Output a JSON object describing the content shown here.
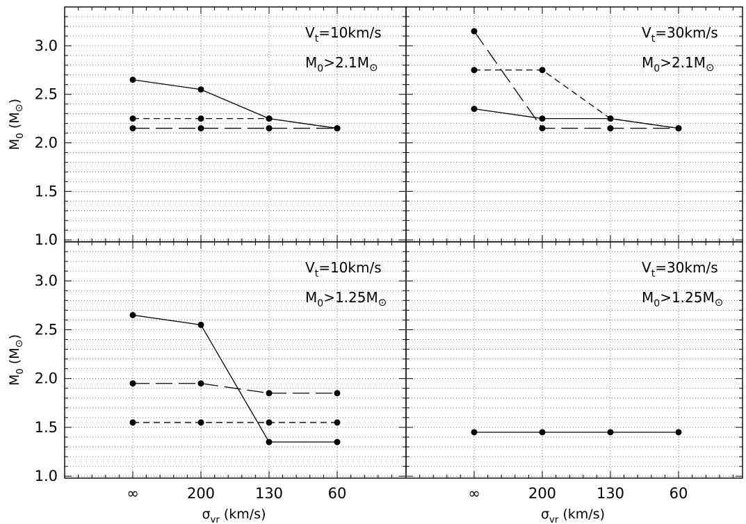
{
  "chart_data": {
    "type": "line",
    "x_tick_labels": [
      "∞",
      "200",
      "130",
      "60"
    ],
    "x_label": {
      "base": "σ",
      "sub": "vr",
      "rest": " (km/s)"
    },
    "y_label": {
      "base": "M",
      "sub": "0",
      "rest": " (M",
      "sun": "⊙",
      "close": ")"
    },
    "y_tick_labels": [
      "1.0",
      "1.5",
      "2.0",
      "2.5",
      "3.0"
    ],
    "ylim": [
      0.98,
      3.4
    ],
    "grid": true,
    "panels": [
      {
        "annotations": {
          "vt": {
            "base": "V",
            "sub": "t",
            "rest": "=10km/s"
          },
          "m0": {
            "base": "M",
            "sub": "0",
            "rest": ">2.1M",
            "sun": "⊙"
          }
        },
        "series": [
          {
            "style": "solid",
            "values": [
              2.65,
              2.55,
              2.25,
              2.15
            ]
          },
          {
            "style": "short-dash",
            "values": [
              2.25,
              2.25,
              2.25,
              2.15
            ]
          },
          {
            "style": "long-dash",
            "values": [
              2.15,
              2.15,
              2.15,
              2.15
            ]
          }
        ]
      },
      {
        "annotations": {
          "vt": {
            "base": "V",
            "sub": "t",
            "rest": "=30km/s"
          },
          "m0": {
            "base": "M",
            "sub": "0",
            "rest": ">2.1M",
            "sun": "⊙"
          }
        },
        "series": [
          {
            "style": "solid",
            "values": [
              2.35,
              2.25,
              2.25,
              2.15
            ]
          },
          {
            "style": "short-dash",
            "values": [
              2.75,
              2.75,
              2.25,
              2.15
            ]
          },
          {
            "style": "long-dash",
            "values": [
              3.15,
              2.15,
              2.15,
              2.15
            ]
          }
        ]
      },
      {
        "annotations": {
          "vt": {
            "base": "V",
            "sub": "t",
            "rest": "=10km/s"
          },
          "m0": {
            "base": "M",
            "sub": "0",
            "rest": ">1.25M",
            "sun": "⊙"
          }
        },
        "series": [
          {
            "style": "solid",
            "values": [
              2.65,
              2.55,
              1.35,
              1.35
            ]
          },
          {
            "style": "short-dash",
            "values": [
              1.55,
              1.55,
              1.55,
              1.55
            ]
          },
          {
            "style": "long-dash",
            "values": [
              1.95,
              1.95,
              1.85,
              1.85
            ]
          }
        ]
      },
      {
        "annotations": {
          "vt": {
            "base": "V",
            "sub": "t",
            "rest": "=30km/s"
          },
          "m0": {
            "base": "M",
            "sub": "0",
            "rest": ">1.25M",
            "sun": "⊙"
          }
        },
        "series": [
          {
            "style": "solid",
            "values": [
              1.45,
              1.45,
              1.45,
              1.45
            ]
          }
        ]
      }
    ]
  }
}
